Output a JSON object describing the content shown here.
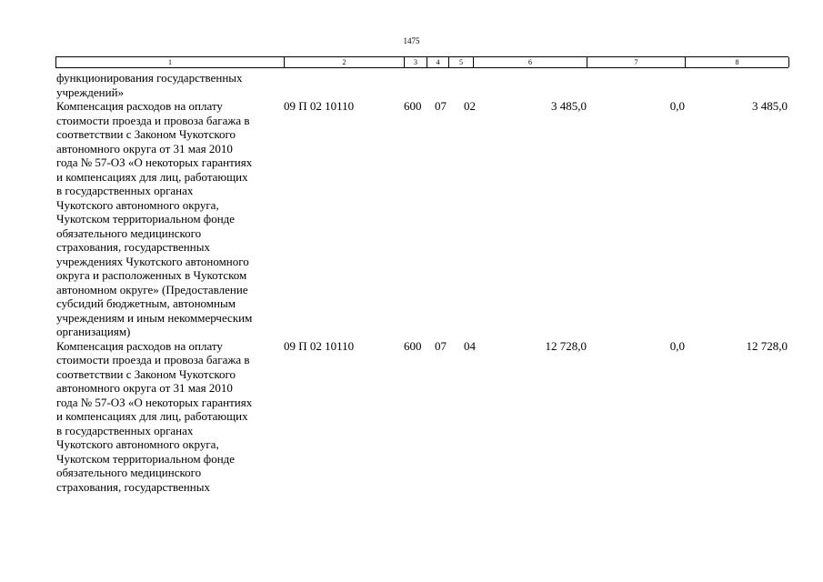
{
  "page_number": "1475",
  "header": [
    "1",
    "2",
    "3",
    "4",
    "5",
    "6",
    "7",
    "8"
  ],
  "rows": [
    {
      "lines": [
        "функционирования государственных",
        "учреждений»"
      ],
      "code": "",
      "c3": "",
      "c4": "",
      "c5": "",
      "c6": "",
      "c7": "",
      "c8": ""
    },
    {
      "lines": [
        "Компенсация расходов на оплату",
        "стоимости проезда и провоза багажа в",
        "соответствии с Законом Чукотского",
        "автономного округа от 31 мая 2010",
        "года № 57-ОЗ «О некоторых гарантиях",
        "и компенсациях для лиц, работающих",
        "в государственных органах",
        "Чукотского автономного округа,",
        "Чукотском территориальном фонде",
        "обязательного медицинского",
        "страхования, государственных",
        "учреждениях Чукотского автономного",
        "округа и расположенных в Чукотском",
        "автономном округе» (Предоставление",
        "субсидий бюджетным, автономным",
        "учреждениям и иным некоммерческим",
        "организациям)"
      ],
      "code": "09 П 02 10110",
      "c3": "600",
      "c4": "07",
      "c5": "02",
      "c6": "3 485,0",
      "c7": "0,0",
      "c8": "3 485,0"
    },
    {
      "lines": [
        "Компенсация расходов на оплату",
        "стоимости проезда и провоза багажа в",
        "соответствии с Законом Чукотского",
        "автономного округа от 31 мая 2010",
        "года № 57-ОЗ «О некоторых гарантиях",
        "и компенсациях для лиц, работающих",
        "в государственных органах",
        "Чукотского автономного округа,",
        "Чукотском территориальном фонде",
        "обязательного медицинского",
        "страхования, государственных"
      ],
      "code": "09 П 02 10110",
      "c3": "600",
      "c4": "07",
      "c5": "04",
      "c6": "12 728,0",
      "c7": "0,0",
      "c8": "12 728,0"
    }
  ]
}
